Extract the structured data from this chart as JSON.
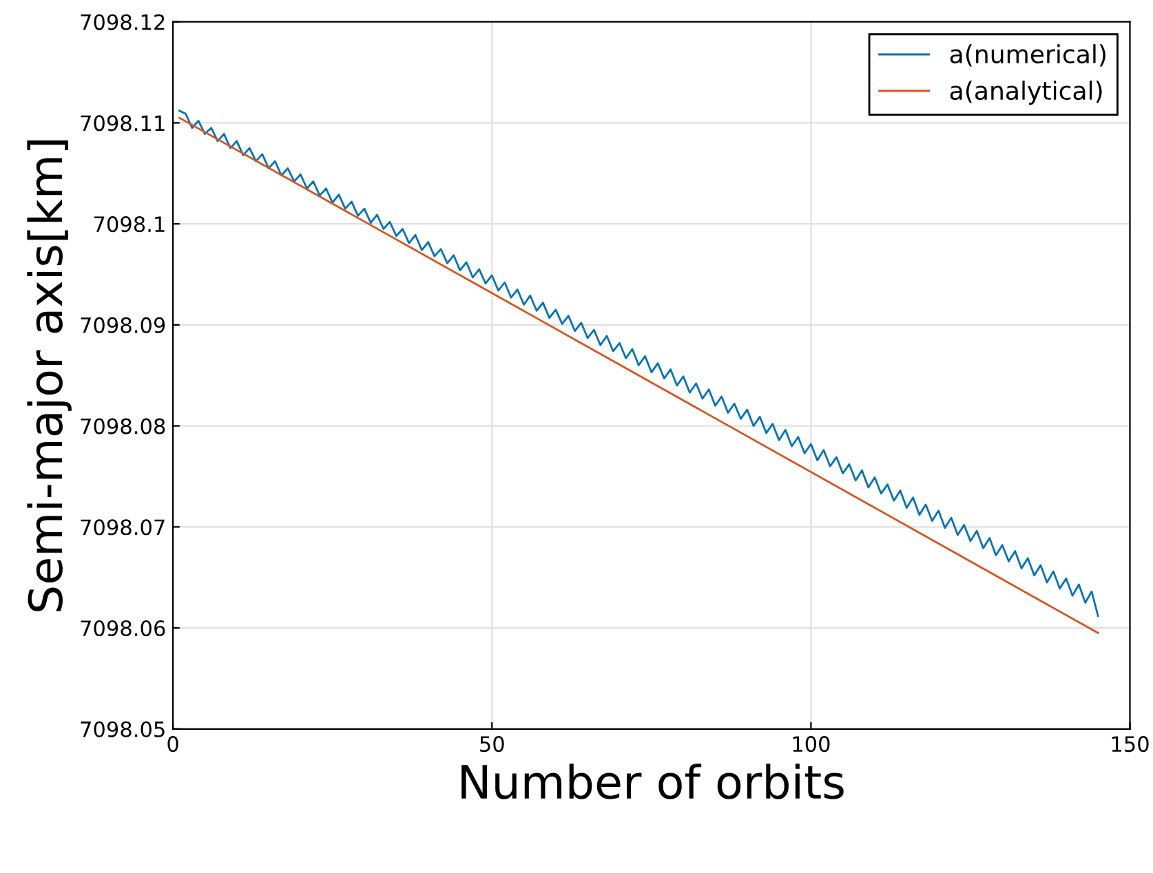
{
  "chart_data": {
    "type": "line",
    "xlabel": "Number of orbits",
    "ylabel": "Semi-major axis[km]",
    "xlim": [
      0,
      150
    ],
    "xticks": [
      0,
      50,
      100,
      150
    ],
    "ylim": [
      7098.05,
      7098.12
    ],
    "yticks": [
      7098.05,
      7098.06,
      7098.07,
      7098.08,
      7098.09,
      7098.1,
      7098.11,
      7098.12
    ],
    "grid": true,
    "legend": "top right",
    "series": [
      {
        "name": "a(numerical)",
        "color": "#0072bd",
        "x": [
          1,
          2,
          3,
          4,
          5,
          6,
          7,
          8,
          9,
          10,
          11,
          12,
          13,
          14,
          15,
          16,
          17,
          18,
          19,
          20,
          21,
          22,
          23,
          24,
          25,
          26,
          27,
          28,
          29,
          30,
          31,
          32,
          33,
          34,
          35,
          36,
          37,
          38,
          39,
          40,
          41,
          42,
          43,
          44,
          45,
          46,
          47,
          48,
          49,
          50,
          51,
          52,
          53,
          54,
          55,
          56,
          57,
          58,
          59,
          60,
          61,
          62,
          63,
          64,
          65,
          66,
          67,
          68,
          69,
          70,
          71,
          72,
          73,
          74,
          75,
          76,
          77,
          78,
          79,
          80,
          81,
          82,
          83,
          84,
          85,
          86,
          87,
          88,
          89,
          90,
          91,
          92,
          93,
          94,
          95,
          96,
          97,
          98,
          99,
          100,
          101,
          102,
          103,
          104,
          105,
          106,
          107,
          108,
          109,
          110,
          111,
          112,
          113,
          114,
          115,
          116,
          117,
          118,
          119,
          120,
          121,
          122,
          123,
          124,
          125,
          126,
          127,
          128,
          129,
          130,
          131,
          132,
          133,
          134,
          135,
          136,
          137,
          138,
          139,
          140,
          141,
          142,
          143,
          144,
          145
        ],
        "values": [
          7098.1112,
          7098.1109,
          7098.1095,
          7098.1102,
          7098.1089,
          7098.1095,
          7098.1082,
          7098.1089,
          7098.1075,
          7098.1082,
          7098.1068,
          7098.1075,
          7098.1062,
          7098.1069,
          7098.1055,
          7098.1062,
          7098.1048,
          7098.1055,
          7098.1042,
          7098.1049,
          7098.1035,
          7098.1042,
          7098.1028,
          7098.1035,
          7098.1021,
          7098.1029,
          7098.1015,
          7098.1022,
          7098.1008,
          7098.1015,
          7098.1001,
          7098.1009,
          7098.0995,
          7098.1002,
          7098.0988,
          7098.0995,
          7098.0981,
          7098.0989,
          7098.0974,
          7098.0982,
          7098.0968,
          7098.0975,
          7098.0961,
          7098.0969,
          7098.0954,
          7098.0962,
          7098.0947,
          7098.0955,
          7098.0941,
          7098.0949,
          7098.0934,
          7098.0942,
          7098.0927,
          7098.0935,
          7098.092,
          7098.0929,
          7098.0914,
          7098.0922,
          7098.0907,
          7098.0915,
          7098.0901,
          7098.0909,
          7098.0894,
          7098.0902,
          7098.0887,
          7098.0895,
          7098.088,
          7098.0889,
          7098.0874,
          7098.0882,
          7098.0867,
          7098.0876,
          7098.086,
          7098.0869,
          7098.0853,
          7098.0862,
          7098.0847,
          7098.0856,
          7098.084,
          7098.0849,
          7098.0833,
          7098.0842,
          7098.0827,
          7098.0836,
          7098.082,
          7098.0829,
          7098.0813,
          7098.0822,
          7098.0807,
          7098.0816,
          7098.08,
          7098.0809,
          7098.0793,
          7098.0802,
          7098.0786,
          7098.0796,
          7098.078,
          7098.0789,
          7098.0773,
          7098.0782,
          7098.0766,
          7098.0776,
          7098.076,
          7098.0769,
          7098.0753,
          7098.0762,
          7098.0746,
          7098.0756,
          7098.0739,
          7098.0749,
          7098.0733,
          7098.0742,
          7098.0726,
          7098.0736,
          7098.0719,
          7098.0729,
          7098.0712,
          7098.0722,
          7098.0706,
          7098.0716,
          7098.0699,
          7098.0709,
          7098.0692,
          7098.0702,
          7098.0686,
          7098.0696,
          7098.0679,
          7098.0689,
          7098.0672,
          7098.0682,
          7098.0666,
          7098.0676,
          7098.0659,
          7098.0669,
          7098.0652,
          7098.0662,
          7098.0645,
          7098.0656,
          7098.0639,
          7098.0649,
          7098.0632,
          7098.0643,
          7098.0625,
          7098.0636,
          7098.0612
        ]
      },
      {
        "name": "a(analytical)",
        "color": "#d95319",
        "x": [
          1,
          145
        ],
        "values": [
          7098.1105,
          7098.0595
        ]
      }
    ]
  }
}
